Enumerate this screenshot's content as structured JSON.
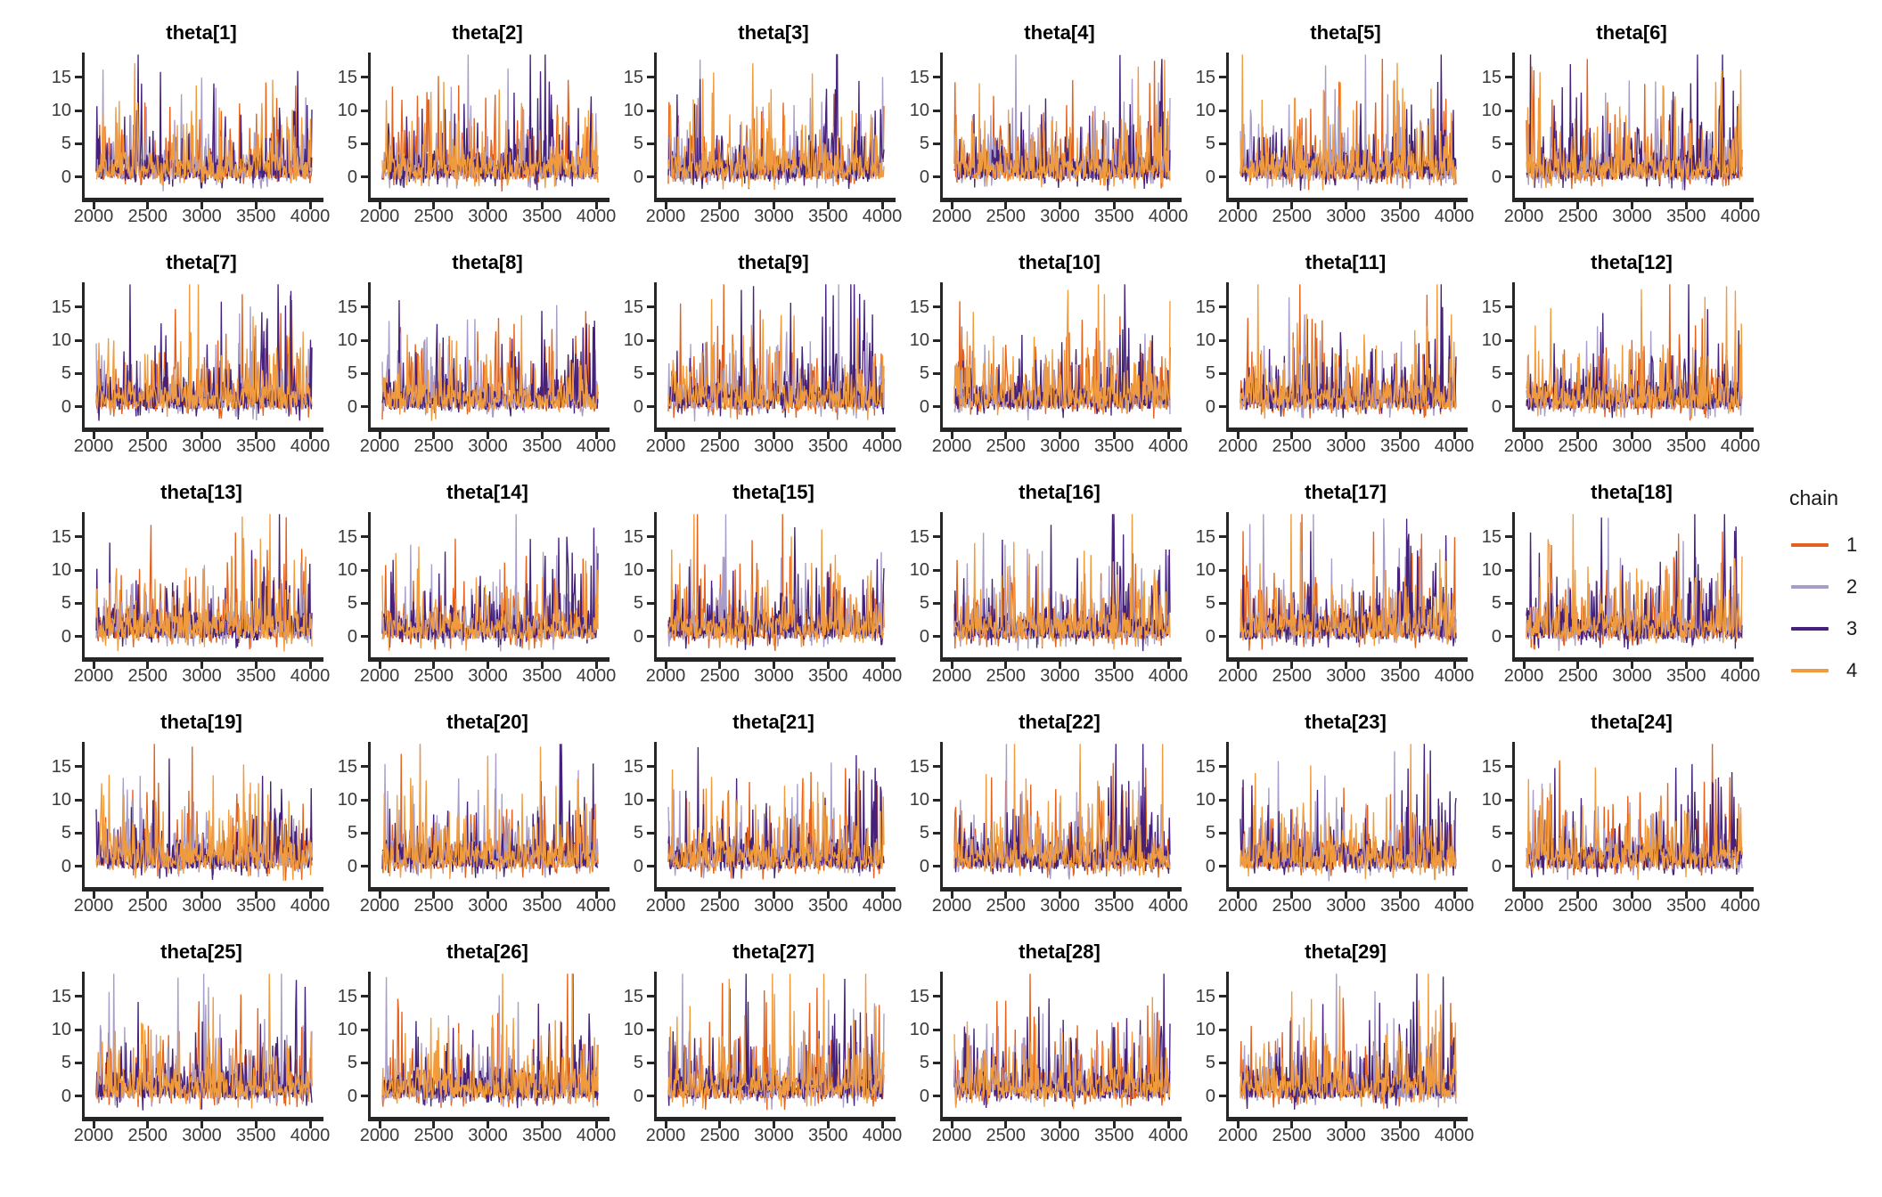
{
  "chart_data": {
    "type": "line",
    "chart_kind": "mcmc-trace-facet-grid",
    "facets": [
      "theta[1]",
      "theta[2]",
      "theta[3]",
      "theta[4]",
      "theta[5]",
      "theta[6]",
      "theta[7]",
      "theta[8]",
      "theta[9]",
      "theta[10]",
      "theta[11]",
      "theta[12]",
      "theta[13]",
      "theta[14]",
      "theta[15]",
      "theta[16]",
      "theta[17]",
      "theta[18]",
      "theta[19]",
      "theta[20]",
      "theta[21]",
      "theta[22]",
      "theta[23]",
      "theta[24]",
      "theta[25]",
      "theta[26]",
      "theta[27]",
      "theta[28]",
      "theta[29]"
    ],
    "grid": {
      "rows": 5,
      "cols": 6
    },
    "x_axis": {
      "tick_labels": [
        "2000",
        "2500",
        "3000",
        "3500",
        "4000"
      ],
      "tick_values": [
        2000,
        2500,
        3000,
        3500,
        4000
      ],
      "range": [
        2000,
        4000
      ],
      "label": ""
    },
    "y_axis": {
      "tick_labels": [
        "15",
        "10",
        "5",
        "0"
      ],
      "tick_values": [
        15,
        10,
        5,
        0
      ],
      "range": [
        -3.1,
        18.7
      ],
      "label": ""
    },
    "legend": {
      "title": "chain",
      "position": "right",
      "entries": [
        "1",
        "2",
        "3",
        "4"
      ]
    },
    "series": [
      {
        "name": "1",
        "color": "#e3611c"
      },
      {
        "name": "2",
        "color": "#a89cc8"
      },
      {
        "name": "3",
        "color": "#45217c"
      },
      {
        "name": "4",
        "color": "#f09b3d"
      }
    ],
    "trace_sim": {
      "points_per_chain": 320,
      "baseline_mean": 1.3,
      "baseline_sd": 1.9,
      "dip_rate": 0.15,
      "dip_depth": 1.9,
      "spike_rate": 0.09,
      "spike_base": 5.5,
      "spike_scale": 3.2,
      "chain3_right_cluster_from": 0.72,
      "chain3_right_boost": 2.0,
      "value_min": -3.1,
      "value_max": 18.4,
      "seed": 20240601
    }
  },
  "style": {
    "axis_color": "#262626",
    "tick_label_color": "#3a3a3a",
    "title_color": "#000000",
    "background": "#ffffff"
  }
}
